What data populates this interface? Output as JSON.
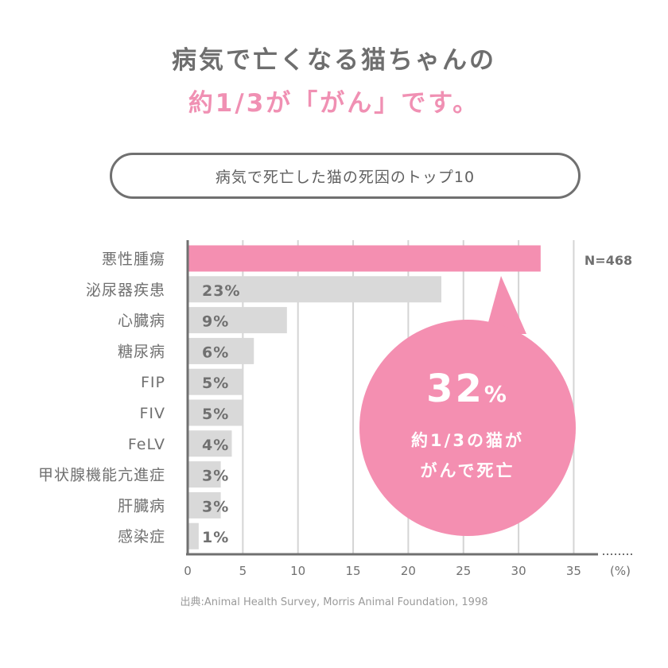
{
  "headline": {
    "line1": "病気で亡くなる猫ちゃんの",
    "line2": "約1/3が「がん」です。"
  },
  "subtitle": "病気で死亡した猫の死因のトップ10",
  "colors": {
    "highlight": "#f48fb1",
    "bar": "#d9d9d9",
    "grid": "#d4d4d4",
    "axis": "#707070",
    "bubble": "#f48fb1"
  },
  "chart_data": {
    "type": "bar",
    "orientation": "horizontal",
    "categories": [
      "悪性腫瘍",
      "泌尿器疾患",
      "心臓病",
      "糖尿病",
      "FIP",
      "FIV",
      "FeLV",
      "甲状腺機能亢進症",
      "肝臓病",
      "感染症"
    ],
    "values": [
      32,
      23,
      9,
      6,
      5,
      5,
      4,
      3,
      3,
      1
    ],
    "value_labels": [
      "",
      "23%",
      "9%",
      "6%",
      "5%",
      "5%",
      "4%",
      "3%",
      "3%",
      "1%"
    ],
    "xlim": [
      0,
      35
    ],
    "xticks": [
      "0",
      "5",
      "10",
      "15",
      "20",
      "25",
      "30",
      "35"
    ],
    "unit_label": "(%)",
    "n_label": "N=468",
    "grid": true,
    "callout": {
      "value": "32",
      "unit": "%",
      "line1": "約1/3の猫が",
      "line2": "がんで死亡"
    }
  },
  "source": "出典:Animal Health Survey, Morris Animal Foundation, 1998"
}
